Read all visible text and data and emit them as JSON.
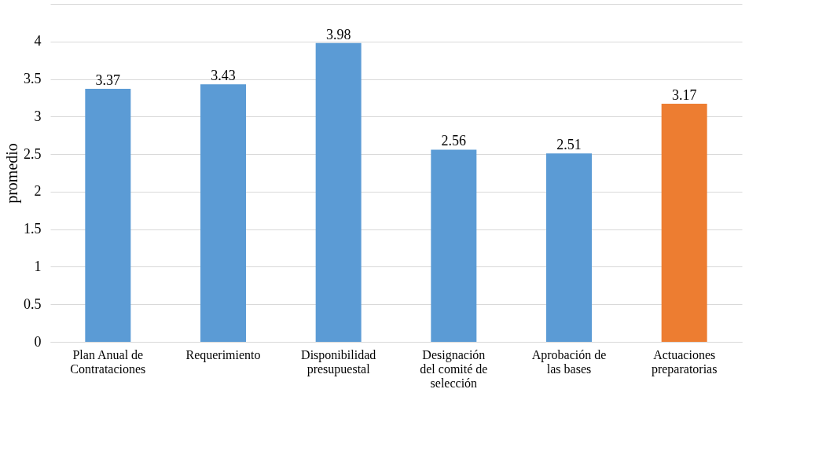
{
  "chart_data": {
    "type": "bar",
    "ylabel": "promedio",
    "categories": [
      "Plan Anual de Contrataciones",
      "Requerimiento",
      "Disponibilidad presupuestal",
      "Designación del comité de selección",
      "Aprobación de las bases",
      "Actuaciones preparatorias"
    ],
    "values": [
      3.37,
      3.43,
      3.98,
      2.56,
      2.51,
      3.17
    ],
    "colors": [
      "#5b9bd5",
      "#5b9bd5",
      "#5b9bd5",
      "#5b9bd5",
      "#5b9bd5",
      "#ed7d31"
    ],
    "ylim": [
      0,
      4.5
    ],
    "yticks": [
      0,
      0.5,
      1,
      1.5,
      2,
      2.5,
      3,
      3.5,
      4,
      {
        "value": 4.5,
        "label": null
      }
    ],
    "grid": "y",
    "data_labels": true
  }
}
